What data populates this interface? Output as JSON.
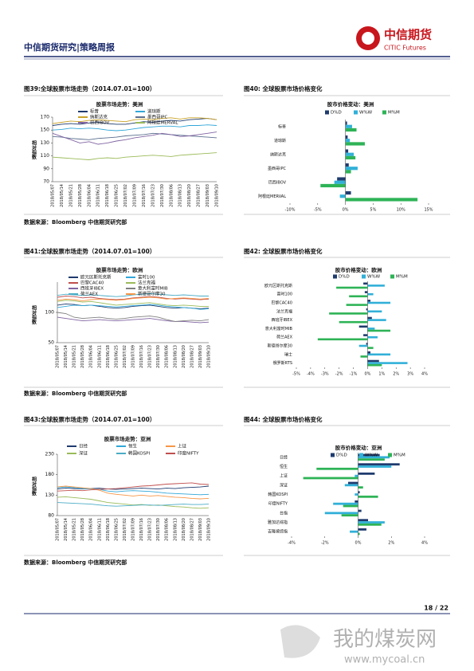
{
  "header": {
    "title": "中信期货研究|策略周报",
    "logo_cn": "中信期货",
    "logo_en": "CITIC Futures"
  },
  "captions": [
    "图39:全球股票市场走势（2014.07.01=100）",
    "图40: 全球股票市场价格变化",
    "图41:全球股票市场走势（2014.07.01=100）",
    "图42: 全球股票市场价格变化",
    "图43:全球股票市场走势（2014.07.01=100）",
    "图44: 全球股票市场价格变化"
  ],
  "sources": [
    "数据来源：Bloomberg 中信期货研究部",
    "数据来源：Bloomberg 中信期货研究部",
    "数据来源：Bloomberg 中信期货研究部"
  ],
  "chart_data": [
    {
      "type": "line",
      "title": "股票市场走势：美洲",
      "y_label": "相对指数",
      "categories": [
        "2018/05/07",
        "2018/05/14",
        "2018/05/21",
        "2018/05/28",
        "2018/06/04",
        "2018/06/11",
        "2018/06/18",
        "2018/06/25",
        "2018/07/02",
        "2018/07/09",
        "2018/07/16",
        "2018/07/23",
        "2018/07/30",
        "2018/08/06",
        "2018/08/13",
        "2018/08/20",
        "2018/08/27",
        "2018/09/03",
        "2018/09/10"
      ],
      "ylim": [
        70,
        170
      ],
      "yticks": [
        70,
        90,
        110,
        130,
        150,
        170
      ],
      "series": [
        {
          "name": "标普",
          "color": "#1f3b6e",
          "values": [
            157,
            159,
            160,
            159,
            161,
            162,
            160,
            159,
            159,
            161,
            163,
            162,
            164,
            165,
            164,
            166,
            167,
            168,
            166
          ]
        },
        {
          "name": "道琼斯",
          "color": "#31a7d8",
          "values": [
            150,
            151,
            153,
            152,
            153,
            152,
            150,
            149,
            150,
            152,
            154,
            155,
            156,
            156,
            155,
            157,
            157,
            158,
            157
          ]
        },
        {
          "name": "纳斯达克",
          "color": "#c9a227",
          "values": [
            160,
            162,
            164,
            163,
            165,
            166,
            165,
            164,
            163,
            166,
            167,
            166,
            168,
            169,
            167,
            169,
            169,
            168,
            166
          ]
        },
        {
          "name": "墨西哥IPC",
          "color": "#5b6f8f",
          "values": [
            140,
            139,
            137,
            136,
            135,
            137,
            138,
            139,
            141,
            142,
            143,
            145,
            144,
            143,
            142,
            141,
            140,
            139,
            138
          ]
        },
        {
          "name": "巴西IBOV",
          "color": "#8064a2",
          "values": [
            145,
            140,
            135,
            130,
            132,
            128,
            130,
            133,
            135,
            138,
            140,
            142,
            145,
            143,
            140,
            141,
            143,
            145,
            147
          ]
        },
        {
          "name": "阿根廷MERVAL",
          "color": "#9bbb59",
          "values": [
            108,
            107,
            106,
            105,
            104,
            106,
            107,
            106,
            108,
            109,
            110,
            111,
            110,
            109,
            111,
            112,
            113,
            114,
            115
          ]
        }
      ]
    },
    {
      "type": "bar",
      "title": "股市价格变动：美洲",
      "categories": [
        "标普",
        "道琼斯",
        "纳斯达克",
        "墨西哥IPC",
        "巴西IBOV",
        "阿根廷MERVAL"
      ],
      "xlim": [
        -10,
        15
      ],
      "xticks": [
        {
          "value": -10,
          "label": "-10%"
        },
        {
          "value": -5,
          "label": "-5%"
        },
        {
          "value": 0,
          "label": "0%"
        },
        {
          "value": 5,
          "label": "5%"
        },
        {
          "value": 10,
          "label": "10%"
        },
        {
          "value": 15,
          "label": "15%"
        }
      ],
      "series": [
        {
          "name": "D%D",
          "color": "#1f3b6e",
          "values": [
            0.3,
            0.4,
            0.5,
            0.6,
            -1.5,
            1.0
          ]
        },
        {
          "name": "W%W",
          "color": "#31b0d8",
          "values": [
            1.2,
            0.8,
            1.5,
            2.2,
            -2.0,
            -1.0
          ]
        },
        {
          "name": "M%M",
          "color": "#2eb356",
          "values": [
            2.0,
            3.5,
            1.8,
            1.0,
            -4.5,
            13.0
          ]
        }
      ]
    },
    {
      "type": "line",
      "title": "股票市场走势：欧洲",
      "y_label": "相对指数",
      "categories": [
        "2018/05/07",
        "2018/05/14",
        "2018/05/21",
        "2018/05/28",
        "2018/06/04",
        "2018/06/11",
        "2018/06/18",
        "2018/06/25",
        "2018/07/02",
        "2018/07/09",
        "2018/07/16",
        "2018/07/23",
        "2018/07/30",
        "2018/08/06",
        "2018/08/13",
        "2018/08/20",
        "2018/08/27",
        "2018/09/03",
        "2018/09/10"
      ],
      "ylim": [
        50,
        150
      ],
      "yticks": [
        50,
        100
      ],
      "series": [
        {
          "name": "欧元区斯托克斯",
          "color": "#1f3b6e",
          "values": [
            112,
            114,
            113,
            111,
            112,
            110,
            108,
            107,
            108,
            110,
            111,
            112,
            110,
            108,
            107,
            108,
            107,
            106,
            107
          ]
        },
        {
          "name": "富时100",
          "color": "#31a7d8",
          "values": [
            108,
            110,
            112,
            111,
            112,
            111,
            110,
            109,
            110,
            111,
            112,
            113,
            112,
            110,
            109,
            108,
            107,
            105,
            106
          ]
        },
        {
          "name": "巴黎CAC40",
          "color": "#c0504d",
          "values": [
            125,
            127,
            126,
            124,
            125,
            123,
            122,
            121,
            122,
            124,
            125,
            126,
            125,
            123,
            122,
            123,
            122,
            121,
            122
          ]
        },
        {
          "name": "法兰克福",
          "color": "#9bbb59",
          "values": [
            118,
            120,
            119,
            117,
            118,
            116,
            114,
            112,
            113,
            114,
            115,
            116,
            114,
            112,
            111,
            112,
            111,
            110,
            110
          ]
        },
        {
          "name": "西班牙IBEX",
          "color": "#8064a2",
          "values": [
            92,
            90,
            88,
            86,
            87,
            88,
            87,
            86,
            87,
            88,
            89,
            90,
            88,
            86,
            85,
            85,
            84,
            83,
            84
          ]
        },
        {
          "name": "意大利富时MIB",
          "color": "#7f7f7f",
          "values": [
            100,
            98,
            92,
            90,
            91,
            92,
            90,
            89,
            90,
            92,
            93,
            94,
            92,
            88,
            85,
            86,
            87,
            86,
            88
          ]
        },
        {
          "name": "荷兰AEX",
          "color": "#4bacc6",
          "values": [
            128,
            130,
            129,
            128,
            129,
            128,
            127,
            126,
            127,
            129,
            130,
            131,
            130,
            129,
            128,
            129,
            128,
            127,
            127
          ]
        },
        {
          "name": "斯德哥尔摩30",
          "color": "#f79646",
          "values": [
            120,
            122,
            121,
            119,
            121,
            122,
            121,
            120,
            121,
            123,
            124,
            125,
            124,
            122,
            123,
            124,
            123,
            122,
            123
          ]
        }
      ]
    },
    {
      "type": "bar",
      "title": "股市价格变动：欧洲",
      "categories": [
        "欧元区斯托克斯",
        "富时100",
        "巴黎CAC40",
        "法兰克福",
        "西班牙IBEX",
        "意大利富时MIB",
        "荷兰AEX",
        "斯德哥尔摩30",
        "瑞士",
        "俄罗斯RTS"
      ],
      "xlim": [
        -5,
        4
      ],
      "xticks": [
        {
          "value": -5,
          "label": "-5%"
        },
        {
          "value": -4,
          "label": "-4%"
        },
        {
          "value": -3,
          "label": "-3%"
        },
        {
          "value": -2,
          "label": "-2%"
        },
        {
          "value": -1,
          "label": "-1%"
        },
        {
          "value": 0,
          "label": "0%"
        },
        {
          "value": 1,
          "label": "1%"
        },
        {
          "value": 2,
          "label": "2%"
        },
        {
          "value": 3,
          "label": "3%"
        },
        {
          "value": 4,
          "label": "4%"
        }
      ],
      "series": [
        {
          "name": "D%D",
          "color": "#1f3b6e",
          "values": [
            -0.3,
            -0.2,
            0.2,
            -0.1,
            0.3,
            -0.6,
            -0.3,
            -0.1,
            0.2,
            0.8
          ]
        },
        {
          "name": "W%W",
          "color": "#31b0d8",
          "values": [
            1.2,
            0.4,
            1.6,
            1.0,
            1.3,
            0.5,
            0.7,
            -0.6,
            1.6,
            2.8
          ]
        },
        {
          "name": "M%M",
          "color": "#2eb356",
          "values": [
            -2.2,
            -1.3,
            -1.5,
            -2.7,
            -2.0,
            1.6,
            -3.5,
            0.4,
            -0.5,
            1.0
          ]
        }
      ]
    },
    {
      "type": "line",
      "title": "股票市场走势：亚洲",
      "y_label": "相对指数",
      "categories": [
        "2018/05/07",
        "2018/05/14",
        "2018/05/21",
        "2018/05/28",
        "2018/06/04",
        "2018/06/11",
        "2018/06/18",
        "2018/06/25",
        "2018/07/02",
        "2018/07/09",
        "2018/07/16",
        "2018/07/23",
        "2018/07/30",
        "2018/08/06",
        "2018/08/13",
        "2018/08/20",
        "2018/08/27",
        "2018/09/03",
        "2018/09/10"
      ],
      "ylim": [
        80,
        230
      ],
      "yticks": [
        80,
        130,
        180,
        230
      ],
      "series": [
        {
          "name": "日经",
          "color": "#1f3b6e",
          "values": [
            145,
            147,
            146,
            145,
            146,
            147,
            145,
            144,
            145,
            146,
            147,
            146,
            145,
            147,
            146,
            148,
            149,
            150,
            152
          ]
        },
        {
          "name": "恒生",
          "color": "#31a7d8",
          "values": [
            148,
            150,
            148,
            146,
            145,
            144,
            140,
            138,
            140,
            141,
            140,
            139,
            137,
            135,
            134,
            133,
            132,
            131,
            132
          ]
        },
        {
          "name": "上证",
          "color": "#f79646",
          "values": [
            150,
            152,
            150,
            148,
            146,
            142,
            135,
            132,
            130,
            128,
            130,
            128,
            129,
            127,
            125,
            124,
            122,
            121,
            122
          ]
        },
        {
          "name": "深证",
          "color": "#9bbb59",
          "values": [
            125,
            126,
            124,
            122,
            120,
            116,
            112,
            110,
            108,
            106,
            107,
            105,
            106,
            104,
            102,
            101,
            99,
            98,
            99
          ]
        },
        {
          "name": "韩国KOSPI",
          "color": "#4bacc6",
          "values": [
            112,
            111,
            110,
            109,
            108,
            106,
            104,
            103,
            104,
            105,
            106,
            106,
            105,
            106,
            107,
            108,
            107,
            107,
            108
          ]
        },
        {
          "name": "印度NIFTY",
          "color": "#c0504d",
          "values": [
            140,
            141,
            142,
            141,
            143,
            144,
            145,
            146,
            148,
            150,
            152,
            153,
            155,
            157,
            158,
            159,
            160,
            157,
            156
          ]
        }
      ]
    },
    {
      "type": "bar",
      "title": "股市价格变动：亚洲",
      "categories": [
        "日经",
        "恒生",
        "上证",
        "深证",
        "韩国KOSPI",
        "印度NIFTY",
        "台指",
        "雅加达综指",
        "吉隆坡综指"
      ],
      "xlim": [
        -4,
        4
      ],
      "xticks": [
        {
          "value": -4,
          "label": "-4%"
        },
        {
          "value": -2,
          "label": "-2%"
        },
        {
          "value": 0,
          "label": "0%"
        },
        {
          "value": 2,
          "label": "2%"
        },
        {
          "value": 4,
          "label": "4%"
        }
      ],
      "series": [
        {
          "name": "D%D",
          "color": "#1f3b6e",
          "values": [
            1.3,
            2.5,
            1.0,
            -0.6,
            0.1,
            -0.2,
            0.2,
            0.6,
            0.5
          ]
        },
        {
          "name": "W%W",
          "color": "#31b0d8",
          "values": [
            1.9,
            2.0,
            -0.2,
            -0.8,
            -0.2,
            -1.5,
            -2.0,
            1.6,
            -0.5
          ]
        },
        {
          "name": "M%M",
          "color": "#2eb356",
          "values": [
            1.6,
            -2.5,
            -3.3,
            0.3,
            1.2,
            -0.9,
            -1.0,
            1.4,
            0.1
          ]
        }
      ]
    }
  ],
  "footer": {
    "page": "18 / 22"
  },
  "watermark": {
    "name": "我的煤炭网",
    "url": "www.mycoal.cn"
  }
}
